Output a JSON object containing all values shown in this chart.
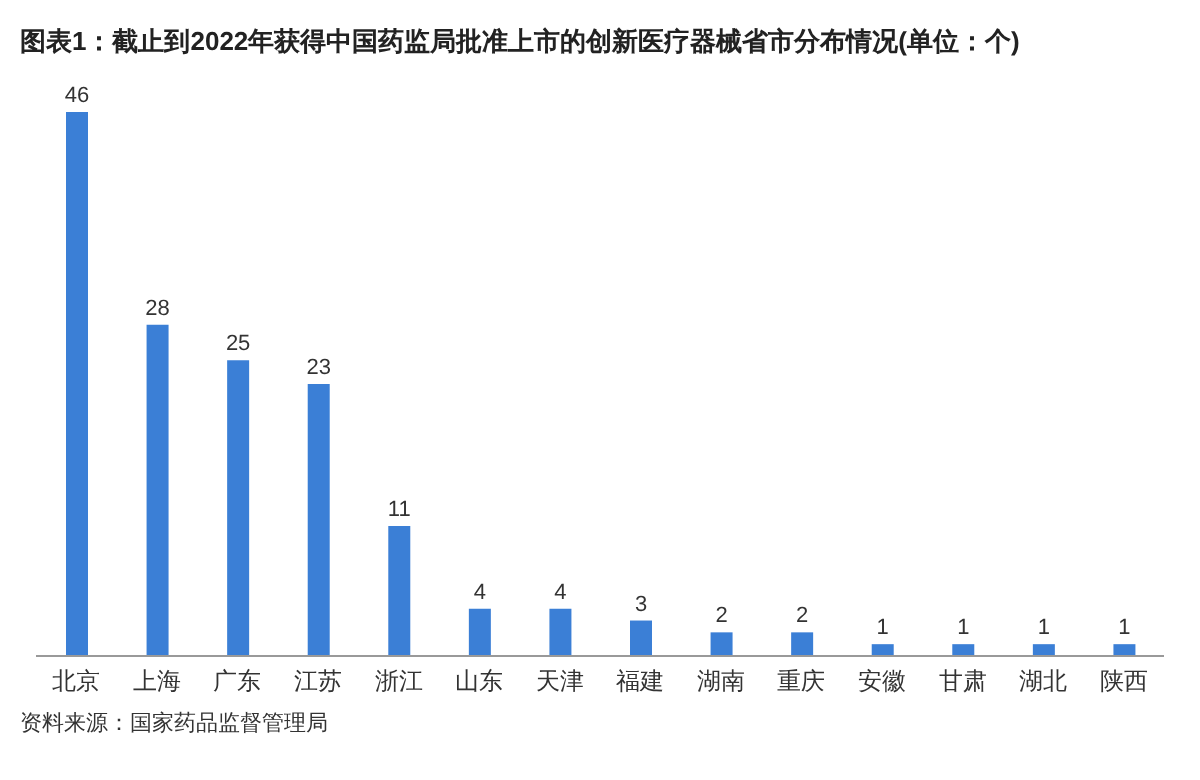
{
  "chart_data": {
    "type": "bar",
    "title": "图表1：截止到2022年获得中国药监局批准上市的创新医疗器械省市分布情况(单位：个)",
    "categories": [
      "北京",
      "上海",
      "广东",
      "江苏",
      "浙江",
      "山东",
      "天津",
      "福建",
      "湖南",
      "重庆",
      "安徽",
      "甘肃",
      "湖北",
      "陕西"
    ],
    "values": [
      46,
      28,
      25,
      23,
      11,
      4,
      4,
      3,
      2,
      2,
      1,
      1,
      1,
      1
    ],
    "color": "#3b7fd6",
    "data_labels": true,
    "grid": false,
    "annotations": [
      "资料来源：国家药品监督管理局"
    ]
  }
}
